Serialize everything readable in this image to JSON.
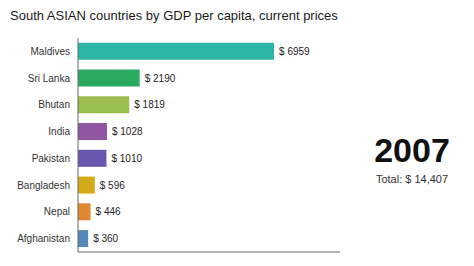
{
  "chart_data": {
    "type": "bar",
    "title": "South ASIAN countries by GDP per capita, current prices",
    "orientation": "horizontal",
    "categories": [
      "Maldives",
      "Sri Lanka",
      "Bhutan",
      "India",
      "Pakistan",
      "Bangladesh",
      "Nepal",
      "Afghanistan"
    ],
    "values": [
      6959,
      2190,
      1819,
      1028,
      1010,
      596,
      446,
      360
    ],
    "value_labels": [
      "$ 6959",
      "$ 2190",
      "$ 1819",
      "$ 1028",
      "$ 1010",
      "$ 596",
      "$ 446",
      "$ 360"
    ],
    "colors": [
      "#2ab5a5",
      "#2aaa60",
      "#9abf50",
      "#9055a0",
      "#6858b0",
      "#d4aa1a",
      "#e08830",
      "#5588bb"
    ],
    "data_labels": true,
    "tick_labels": "y",
    "grid": false,
    "xlim": [
      0,
      9300
    ],
    "annotations": [
      "2007",
      "Total: $ 14,407"
    ]
  }
}
